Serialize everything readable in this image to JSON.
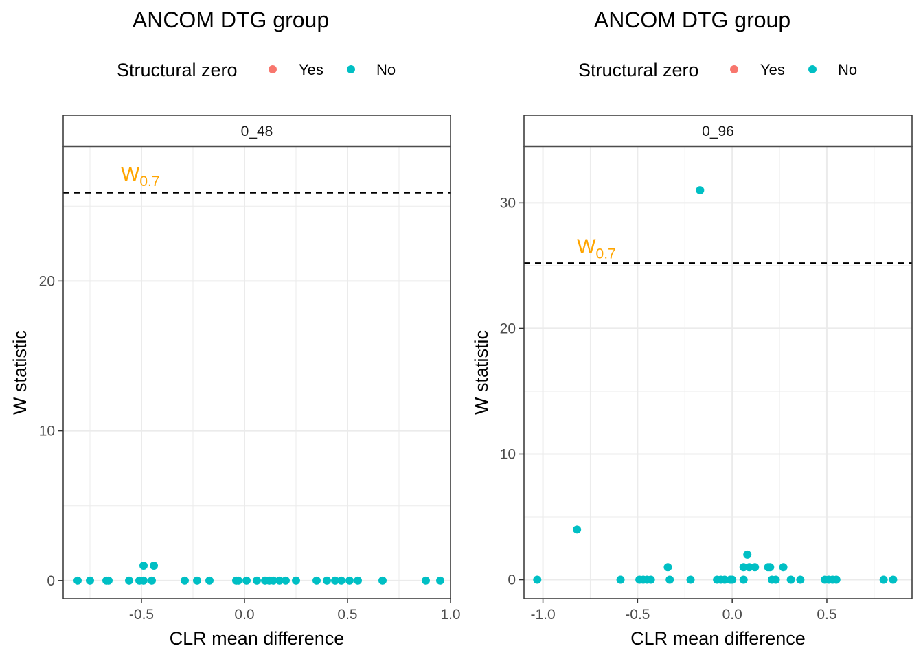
{
  "colors": {
    "structural_zero_yes": "#F8766D",
    "structural_zero_no": "#00BFC4",
    "threshold_label": "#FFA500",
    "grid": "#EBEBEB",
    "panel_border": "#333333",
    "strip_border": "#4D4D4D"
  },
  "chart_data": [
    {
      "type": "scatter",
      "title": "ANCOM DTG group",
      "legend": {
        "title": "Structural zero",
        "placement": "top",
        "entries": [
          "Yes",
          "No"
        ]
      },
      "facet_label": "0_48",
      "xlabel": "CLR mean difference",
      "ylabel": "W statistic",
      "xlim": [
        -0.88,
        1.0
      ],
      "ylim": [
        -1.2,
        29.0
      ],
      "x_ticks": [
        -0.5,
        0.0,
        0.5,
        1.0
      ],
      "x_tick_labels": [
        "-0.5",
        "0.0",
        "0.5",
        "1.0"
      ],
      "y_ticks": [
        0,
        10,
        20
      ],
      "y_tick_labels": [
        "0",
        "10",
        "20"
      ],
      "grid": true,
      "threshold": {
        "y": 25.9,
        "label_main": "W",
        "label_sub": "0.7",
        "label_x": -0.6,
        "label_y": 26.7
      },
      "series": [
        {
          "name": "No",
          "points": [
            [
              -0.81,
              0
            ],
            [
              -0.75,
              0
            ],
            [
              -0.67,
              0
            ],
            [
              -0.66,
              0
            ],
            [
              -0.56,
              0
            ],
            [
              -0.51,
              0
            ],
            [
              -0.49,
              1
            ],
            [
              -0.49,
              0
            ],
            [
              -0.45,
              0
            ],
            [
              -0.44,
              1
            ],
            [
              -0.29,
              0
            ],
            [
              -0.23,
              0
            ],
            [
              -0.17,
              0
            ],
            [
              -0.04,
              0
            ],
            [
              -0.03,
              0
            ],
            [
              0.01,
              0
            ],
            [
              0.06,
              0
            ],
            [
              0.1,
              0
            ],
            [
              0.12,
              0
            ],
            [
              0.14,
              0
            ],
            [
              0.17,
              0
            ],
            [
              0.2,
              0
            ],
            [
              0.25,
              0
            ],
            [
              0.35,
              0
            ],
            [
              0.4,
              0
            ],
            [
              0.44,
              0
            ],
            [
              0.47,
              0
            ],
            [
              0.51,
              0
            ],
            [
              0.55,
              0
            ],
            [
              0.67,
              0
            ],
            [
              0.88,
              0
            ],
            [
              0.95,
              0
            ]
          ]
        },
        {
          "name": "Yes",
          "points": []
        }
      ]
    },
    {
      "type": "scatter",
      "title": "ANCOM DTG group",
      "legend": {
        "title": "Structural zero",
        "placement": "top",
        "entries": [
          "Yes",
          "No"
        ]
      },
      "facet_label": "0_96",
      "xlabel": "CLR mean difference",
      "ylabel": "W statistic",
      "xlim": [
        -1.1,
        0.95
      ],
      "ylim": [
        -1.5,
        34.5
      ],
      "x_ticks": [
        -1.0,
        -0.5,
        0.0,
        0.5
      ],
      "x_tick_labels": [
        "-1.0",
        "-0.5",
        "0.0",
        "0.5"
      ],
      "y_ticks": [
        0,
        10,
        20,
        30
      ],
      "y_tick_labels": [
        "0",
        "10",
        "20",
        "30"
      ],
      "grid": true,
      "threshold": {
        "y": 25.2,
        "label_main": "W",
        "label_sub": "0.7",
        "label_x": -0.82,
        "label_y": 26.0
      },
      "series": [
        {
          "name": "No",
          "points": [
            [
              -1.03,
              0
            ],
            [
              -0.82,
              4
            ],
            [
              -0.59,
              0
            ],
            [
              -0.49,
              0
            ],
            [
              -0.47,
              0
            ],
            [
              -0.45,
              0
            ],
            [
              -0.43,
              0
            ],
            [
              -0.34,
              1
            ],
            [
              -0.33,
              0
            ],
            [
              -0.22,
              0
            ],
            [
              -0.17,
              31
            ],
            [
              -0.08,
              0
            ],
            [
              -0.06,
              0
            ],
            [
              -0.04,
              0
            ],
            [
              -0.01,
              0
            ],
            [
              0.0,
              0
            ],
            [
              0.06,
              0
            ],
            [
              0.06,
              1
            ],
            [
              0.08,
              2
            ],
            [
              0.09,
              1
            ],
            [
              0.12,
              1
            ],
            [
              0.19,
              1
            ],
            [
              0.2,
              1
            ],
            [
              0.21,
              0
            ],
            [
              0.23,
              0
            ],
            [
              0.27,
              1
            ],
            [
              0.31,
              0
            ],
            [
              0.36,
              0
            ],
            [
              0.49,
              0
            ],
            [
              0.51,
              0
            ],
            [
              0.53,
              0
            ],
            [
              0.55,
              0
            ],
            [
              0.8,
              0
            ],
            [
              0.85,
              0
            ]
          ]
        },
        {
          "name": "Yes",
          "points": []
        }
      ]
    }
  ]
}
